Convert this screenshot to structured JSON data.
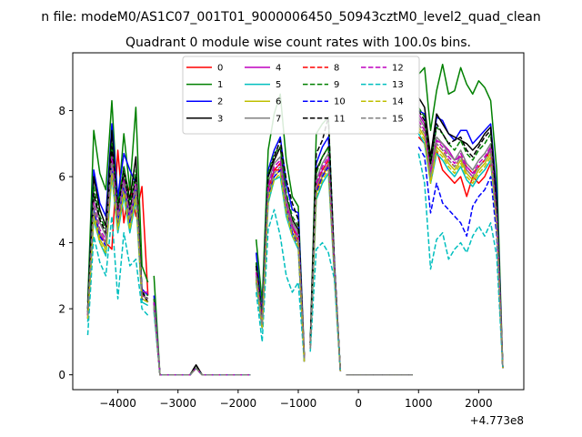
{
  "suptitle": "n file: modeM0/AS1C07_001T01_9000006450_50943cztM0_level2_quad_clean",
  "chart_data": {
    "type": "line",
    "title": "Quadrant 0 module wise count rates with 100.0s bins.",
    "xlabel": "",
    "ylabel": "",
    "x_offset_label": "+4.773e8",
    "xlim": [
      -4750,
      2750
    ],
    "ylim": [
      -0.45,
      9.75
    ],
    "x_ticks": [
      -4000,
      -3000,
      -2000,
      -1000,
      0,
      1000,
      2000
    ],
    "x_tick_labels": [
      "−4000",
      "−3000",
      "−2000",
      "−1000",
      "0",
      "1000",
      "2000"
    ],
    "y_ticks": [
      0,
      2,
      4,
      6,
      8
    ],
    "y_tick_labels": [
      "0",
      "2",
      "4",
      "6",
      "8"
    ],
    "legend_position": "upper-center",
    "legend_columns": 4,
    "x": [
      -4500,
      -4400,
      -4300,
      -4200,
      -4100,
      -4000,
      -3900,
      -3800,
      -3700,
      -3600,
      -3500,
      -3400,
      -3300,
      -3200,
      -3100,
      -3000,
      -2900,
      -2800,
      -2700,
      -2600,
      -2500,
      -2400,
      -2300,
      -2200,
      -2100,
      -2000,
      -1900,
      -1800,
      -1700,
      -1600,
      -1500,
      -1400,
      -1300,
      -1200,
      -1100,
      -1000,
      -900,
      -800,
      -700,
      -600,
      -500,
      -400,
      -300,
      -200,
      -100,
      0,
      100,
      200,
      300,
      400,
      500,
      600,
      700,
      800,
      900,
      1000,
      1100,
      1200,
      1300,
      1400,
      1500,
      1600,
      1700,
      1800,
      1900,
      2000,
      2100,
      2200,
      2300,
      2400
    ],
    "segments": [
      [
        -4500,
        -3500
      ],
      [
        -3400,
        -1800
      ],
      [
        -1700,
        -900
      ],
      [
        -800,
        -300
      ],
      [
        -200,
        900
      ],
      [
        1000,
        2400
      ]
    ],
    "series": [
      {
        "name": "0",
        "color": "#ff0000",
        "dash": "solid",
        "values": [
          1.8,
          5.0,
          4.2,
          4.0,
          3.8,
          6.8,
          4.6,
          5.8,
          4.8,
          5.7,
          2.4,
          2.0,
          0,
          0,
          0,
          0,
          0,
          0,
          0.2,
          0,
          0,
          0,
          0,
          0,
          0,
          0,
          0,
          0,
          2.8,
          1.5,
          5.5,
          6.2,
          6.2,
          5.1,
          4.5,
          4.0,
          0.5,
          0.9,
          5.6,
          6.0,
          6.4,
          3.2,
          0.1,
          0,
          0,
          0,
          0,
          0,
          0,
          0,
          0,
          0,
          0,
          0,
          0,
          7.2,
          7.0,
          6.0,
          6.8,
          6.2,
          6.0,
          5.8,
          6.0,
          5.4,
          6.0,
          5.8,
          6.0,
          6.4,
          4.8,
          0.2
        ]
      },
      {
        "name": "1",
        "color": "#008000",
        "dash": "solid",
        "values": [
          2.2,
          7.4,
          6.1,
          5.6,
          8.3,
          5.1,
          7.3,
          5.6,
          8.1,
          3.3,
          2.8,
          3.0,
          0,
          0,
          0,
          0,
          0,
          0,
          0.2,
          0,
          0,
          0,
          0,
          0,
          0,
          0,
          0,
          0,
          4.1,
          2.2,
          6.8,
          7.9,
          8.5,
          6.5,
          5.4,
          5.1,
          0.6,
          1.0,
          7.3,
          7.6,
          7.8,
          3.4,
          0.1,
          0,
          0,
          0,
          0,
          0,
          0,
          0,
          0,
          0,
          0,
          0,
          0,
          9.1,
          9.3,
          7.4,
          8.6,
          9.4,
          8.5,
          8.6,
          9.3,
          8.8,
          8.5,
          8.9,
          8.7,
          8.3,
          6.2,
          0.2
        ]
      },
      {
        "name": "2",
        "color": "#0000ff",
        "dash": "solid",
        "values": [
          2.0,
          6.2,
          5.2,
          4.8,
          7.6,
          5.4,
          6.7,
          6.2,
          5.8,
          2.6,
          2.4,
          2.4,
          0,
          0,
          0,
          0,
          0,
          0,
          0.2,
          0,
          0,
          0,
          0,
          0,
          0,
          0,
          0,
          0,
          3.7,
          1.8,
          6.2,
          6.8,
          7.2,
          5.8,
          5.0,
          4.9,
          0.5,
          0.9,
          6.4,
          6.9,
          7.2,
          3.4,
          0.1,
          0,
          0,
          0,
          0,
          0,
          0,
          0,
          0,
          0,
          0,
          0,
          0,
          8.0,
          7.9,
          6.3,
          7.8,
          7.7,
          7.3,
          7.1,
          7.4,
          7.4,
          7.0,
          7.2,
          7.4,
          7.6,
          5.5,
          0.2
        ]
      },
      {
        "name": "3",
        "color": "#000000",
        "dash": "solid",
        "values": [
          2.0,
          6.0,
          5.0,
          4.5,
          7.4,
          5.0,
          6.3,
          5.3,
          6.6,
          2.5,
          2.2,
          2.2,
          0,
          0,
          0,
          0,
          0,
          0,
          0.3,
          0,
          0,
          0,
          0,
          0,
          0,
          0,
          0,
          0,
          3.4,
          1.7,
          6.0,
          6.5,
          6.9,
          5.4,
          4.7,
          4.4,
          0.5,
          0.9,
          6.2,
          6.6,
          6.9,
          3.3,
          0.1,
          0,
          0,
          0,
          0,
          0,
          0,
          0,
          0,
          0,
          0,
          0,
          0,
          8.4,
          8.1,
          6.6,
          7.9,
          7.6,
          7.3,
          7.2,
          7.1,
          7.0,
          6.8,
          7.0,
          7.3,
          7.5,
          5.2,
          0.2
        ]
      },
      {
        "name": "4",
        "color": "#bf00bf",
        "dash": "solid",
        "values": [
          1.8,
          5.0,
          4.3,
          4.0,
          6.4,
          4.8,
          5.9,
          4.7,
          5.8,
          2.5,
          2.5,
          2.3,
          0,
          0,
          0,
          0,
          0,
          0,
          0.2,
          0,
          0,
          0,
          0,
          0,
          0,
          0,
          0,
          0,
          3.0,
          1.5,
          5.6,
          6.2,
          6.4,
          5.2,
          4.5,
          4.2,
          0.5,
          0.8,
          5.7,
          6.2,
          6.5,
          3.2,
          0.1,
          0,
          0,
          0,
          0,
          0,
          0,
          0,
          0,
          0,
          0,
          0,
          0,
          7.9,
          7.6,
          6.1,
          7.1,
          7.0,
          6.8,
          6.5,
          6.6,
          6.2,
          6.0,
          6.3,
          6.5,
          6.9,
          4.8,
          0.2
        ]
      },
      {
        "name": "5",
        "color": "#00bfbf",
        "dash": "solid",
        "values": [
          1.6,
          4.7,
          4.0,
          3.6,
          6.0,
          4.3,
          5.4,
          4.3,
          5.3,
          2.2,
          2.1,
          2.0,
          0,
          0,
          0,
          0,
          0,
          0,
          0.2,
          0,
          0,
          0,
          0,
          0,
          0,
          0,
          0,
          0,
          2.8,
          1.4,
          5.2,
          5.9,
          6.0,
          4.8,
          4.2,
          3.8,
          0.4,
          0.8,
          5.3,
          5.8,
          6.1,
          3.0,
          0.1,
          0,
          0,
          0,
          0,
          0,
          0,
          0,
          0,
          0,
          0,
          0,
          0,
          7.3,
          7.0,
          5.8,
          6.7,
          6.5,
          6.2,
          6.0,
          6.3,
          5.9,
          5.7,
          6.0,
          6.2,
          6.5,
          4.5,
          0.2
        ]
      },
      {
        "name": "6",
        "color": "#bfbf00",
        "dash": "solid",
        "values": [
          1.7,
          4.9,
          4.1,
          3.8,
          6.2,
          4.5,
          5.6,
          4.5,
          5.5,
          2.3,
          2.2,
          2.1,
          0,
          0,
          0,
          0,
          0,
          0,
          0.2,
          0,
          0,
          0,
          0,
          0,
          0,
          0,
          0,
          0,
          2.9,
          1.5,
          5.4,
          6.0,
          6.2,
          5.0,
          4.3,
          4.0,
          0.4,
          0.8,
          5.5,
          6.0,
          6.3,
          3.1,
          0.1,
          0,
          0,
          0,
          0,
          0,
          0,
          0,
          0,
          0,
          0,
          0,
          0,
          7.5,
          7.2,
          5.9,
          6.9,
          6.7,
          6.4,
          6.2,
          6.5,
          6.1,
          5.9,
          6.2,
          6.4,
          6.7,
          4.6,
          0.2
        ]
      },
      {
        "name": "7",
        "color": "#808080",
        "dash": "solid",
        "values": [
          1.9,
          5.4,
          4.6,
          4.2,
          6.7,
          4.9,
          6.0,
          4.9,
          5.9,
          2.4,
          2.3,
          2.2,
          0,
          0,
          0,
          0,
          0,
          0,
          0.2,
          0,
          0,
          0,
          0,
          0,
          0,
          0,
          0,
          0,
          3.2,
          1.6,
          5.8,
          6.4,
          6.6,
          5.3,
          4.6,
          4.3,
          0.5,
          0.9,
          5.9,
          6.4,
          6.7,
          3.3,
          0.1,
          0,
          0,
          0,
          0,
          0,
          0,
          0,
          0,
          0,
          0,
          0,
          0,
          7.8,
          7.5,
          6.2,
          7.2,
          7.0,
          6.7,
          6.5,
          6.8,
          6.4,
          6.2,
          6.5,
          6.7,
          7.0,
          4.8,
          0.2
        ]
      },
      {
        "name": "8",
        "color": "#ff0000",
        "dash": "dashed",
        "values": [
          1.8,
          5.1,
          4.3,
          4.0,
          6.5,
          4.7,
          5.8,
          4.7,
          5.7,
          2.4,
          2.3,
          2.1,
          0,
          0,
          0,
          0,
          0,
          0,
          0.2,
          0,
          0,
          0,
          0,
          0,
          0,
          0,
          0,
          0,
          3.1,
          1.5,
          5.6,
          6.2,
          6.4,
          5.2,
          4.5,
          4.1,
          0.5,
          0.8,
          5.8,
          6.2,
          6.5,
          3.2,
          0.1,
          0,
          0,
          0,
          0,
          0,
          0,
          0,
          0,
          0,
          0,
          0,
          0,
          7.6,
          7.3,
          6.1,
          7.0,
          6.8,
          6.5,
          6.3,
          6.6,
          6.3,
          6.1,
          6.3,
          6.5,
          6.8,
          4.7,
          0.2
        ]
      },
      {
        "name": "9",
        "color": "#008000",
        "dash": "dashed",
        "values": [
          2.0,
          5.7,
          4.8,
          4.4,
          7.0,
          5.1,
          6.3,
          5.1,
          6.2,
          2.5,
          2.4,
          2.3,
          0,
          0,
          0,
          0,
          0,
          0,
          0.2,
          0,
          0,
          0,
          0,
          0,
          0,
          0,
          0,
          0,
          3.4,
          1.7,
          6.1,
          6.7,
          6.9,
          5.5,
          4.8,
          4.5,
          0.5,
          0.9,
          6.1,
          6.6,
          6.9,
          3.3,
          0.1,
          0,
          0,
          0,
          0,
          0,
          0,
          0,
          0,
          0,
          0,
          0,
          0,
          8.1,
          7.8,
          6.4,
          7.5,
          7.3,
          7.0,
          6.8,
          7.1,
          6.7,
          6.5,
          6.8,
          7.0,
          7.3,
          5.0,
          0.2
        ]
      },
      {
        "name": "10",
        "color": "#0000ff",
        "dash": "dashed",
        "values": [
          1.7,
          5.0,
          4.2,
          3.9,
          6.3,
          4.6,
          5.7,
          4.6,
          5.6,
          2.3,
          2.2,
          2.1,
          0,
          0,
          0,
          0,
          0,
          0,
          0.2,
          0,
          0,
          0,
          0,
          0,
          0,
          0,
          0,
          0,
          2.9,
          1.4,
          5.4,
          6.0,
          6.2,
          5.0,
          4.3,
          3.9,
          0.4,
          0.8,
          5.5,
          6.0,
          6.3,
          3.1,
          0.1,
          0,
          0,
          0,
          0,
          0,
          0,
          0,
          0,
          0,
          0,
          0,
          0,
          6.9,
          6.6,
          4.9,
          5.8,
          5.2,
          5.0,
          4.8,
          4.6,
          4.2,
          5.1,
          5.4,
          5.6,
          6.0,
          4.2,
          0.2
        ]
      },
      {
        "name": "11",
        "color": "#000000",
        "dash": "dashed",
        "values": [
          1.9,
          5.5,
          4.7,
          4.3,
          6.9,
          5.0,
          6.1,
          5.0,
          6.0,
          2.5,
          2.3,
          2.2,
          0,
          0,
          0,
          0,
          0,
          0,
          0.3,
          0,
          0,
          0,
          0,
          0,
          0,
          0,
          0,
          0,
          3.3,
          1.6,
          6.0,
          6.6,
          7.1,
          5.9,
          5.2,
          4.7,
          0.5,
          0.9,
          6.7,
          7.1,
          7.8,
          3.4,
          0.1,
          0,
          0,
          0,
          0,
          0,
          0,
          0,
          0,
          0,
          0,
          0,
          0,
          8.0,
          7.7,
          6.4,
          7.6,
          7.3,
          7.0,
          7.1,
          7.2,
          6.8,
          6.6,
          6.9,
          7.2,
          7.4,
          5.1,
          0.2
        ]
      },
      {
        "name": "12",
        "color": "#bf00bf",
        "dash": "dashed",
        "values": [
          1.8,
          5.2,
          4.4,
          4.1,
          6.6,
          4.8,
          5.9,
          4.8,
          5.8,
          2.4,
          2.3,
          2.2,
          0,
          0,
          0,
          0,
          0,
          0,
          0.2,
          0,
          0,
          0,
          0,
          0,
          0,
          0,
          0,
          0,
          3.1,
          1.6,
          5.7,
          6.3,
          6.5,
          5.2,
          4.5,
          4.2,
          0.5,
          0.8,
          5.8,
          6.3,
          6.6,
          3.2,
          0.1,
          0,
          0,
          0,
          0,
          0,
          0,
          0,
          0,
          0,
          0,
          0,
          0,
          7.7,
          7.4,
          6.1,
          7.1,
          6.9,
          6.6,
          6.4,
          6.7,
          6.3,
          6.1,
          6.4,
          6.6,
          6.9,
          4.7,
          0.2
        ]
      },
      {
        "name": "13",
        "color": "#00bfbf",
        "dash": "dashed",
        "values": [
          1.2,
          4.2,
          3.4,
          3.0,
          4.8,
          2.3,
          4.3,
          3.3,
          3.5,
          2.0,
          1.8,
          1.9,
          0,
          0,
          0,
          0,
          0,
          0,
          0.2,
          0,
          0,
          0,
          0,
          0,
          0,
          0,
          0,
          0,
          2.5,
          1.0,
          4.4,
          5.0,
          4.2,
          3.0,
          2.5,
          2.8,
          0.4,
          0.7,
          3.8,
          4.0,
          3.7,
          2.9,
          0.1,
          0,
          0,
          0,
          0,
          0,
          0,
          0,
          0,
          0,
          0,
          0,
          0,
          6.7,
          5.8,
          3.2,
          4.1,
          4.3,
          3.5,
          3.8,
          4.0,
          3.7,
          4.2,
          4.5,
          4.2,
          4.6,
          3.6,
          0.2
        ]
      },
      {
        "name": "14",
        "color": "#bfbf00",
        "dash": "dashed",
        "values": [
          1.7,
          4.8,
          4.0,
          3.7,
          6.1,
          4.4,
          5.5,
          4.4,
          5.4,
          2.3,
          2.2,
          2.1,
          0,
          0,
          0,
          0,
          0,
          0,
          0.2,
          0,
          0,
          0,
          0,
          0,
          0,
          0,
          0,
          0,
          2.9,
          1.4,
          5.3,
          5.9,
          6.1,
          4.9,
          4.2,
          3.9,
          0.4,
          0.8,
          5.4,
          5.9,
          6.2,
          3.1,
          0.1,
          0,
          0,
          0,
          0,
          0,
          0,
          0,
          0,
          0,
          0,
          0,
          0,
          7.4,
          7.1,
          5.8,
          6.8,
          6.6,
          6.3,
          6.1,
          6.4,
          6.0,
          5.8,
          6.1,
          6.3,
          6.6,
          4.5,
          0.2
        ]
      },
      {
        "name": "15",
        "color": "#808080",
        "dash": "dashed",
        "values": [
          1.8,
          5.1,
          4.3,
          4.0,
          6.4,
          4.7,
          5.8,
          4.7,
          5.7,
          2.4,
          2.3,
          2.1,
          0,
          0,
          0,
          0,
          0,
          0,
          0.2,
          0,
          0,
          0,
          0,
          0,
          0,
          0,
          0,
          0,
          3.0,
          1.5,
          5.5,
          6.1,
          6.3,
          5.1,
          4.4,
          4.1,
          0.5,
          0.8,
          5.7,
          6.1,
          6.4,
          3.2,
          0.1,
          0,
          0,
          0,
          0,
          0,
          0,
          0,
          0,
          0,
          0,
          0,
          0,
          7.6,
          7.3,
          6.0,
          7.0,
          6.8,
          6.5,
          6.3,
          6.6,
          6.2,
          6.0,
          6.3,
          6.5,
          6.8,
          4.7,
          0.2
        ]
      }
    ]
  }
}
